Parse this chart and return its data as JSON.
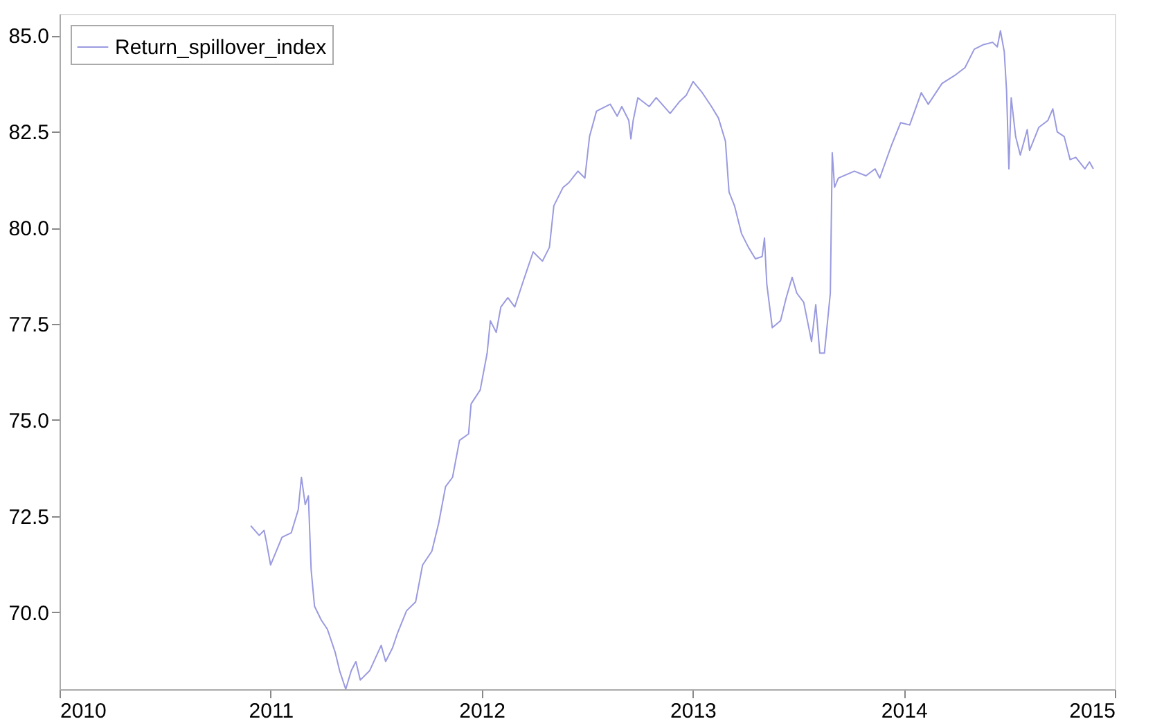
{
  "chart_data": {
    "type": "line",
    "xlim": [
      2010,
      2015
    ],
    "xticks": [
      2010,
      2011,
      2012,
      2013,
      2014,
      2015
    ],
    "ylim": [
      68.0,
      85.56
    ],
    "yticks": [
      {
        "value": 70,
        "label": "70.0"
      },
      72.5,
      {
        "value": 75,
        "label": "75.0"
      },
      77.5,
      {
        "value": 80,
        "label": "80.0"
      },
      82.5,
      {
        "value": 85,
        "label": "85.0"
      }
    ],
    "grid": false,
    "legend": "top left",
    "line_style": "solid",
    "series": [
      {
        "name": "Return_spillover_index",
        "color": "#9a9ae0",
        "x": [
          2010.906,
          2010.946,
          2010.969,
          2010.98,
          2011.0,
          2011.054,
          2011.098,
          2011.131,
          2011.146,
          2011.164,
          2011.179,
          2011.192,
          2011.208,
          2011.24,
          2011.269,
          2011.306,
          2011.327,
          2011.356,
          2011.382,
          2011.404,
          2011.425,
          2011.469,
          2011.524,
          2011.545,
          2011.578,
          2011.6,
          2011.644,
          2011.687,
          2011.72,
          2011.764,
          2011.796,
          2011.829,
          2011.862,
          2011.895,
          2011.938,
          2011.95,
          2011.993,
          2012.026,
          2012.041,
          2012.069,
          2012.091,
          2012.124,
          2012.157,
          2012.2,
          2012.244,
          2012.288,
          2012.321,
          2012.342,
          2012.386,
          2012.413,
          2012.456,
          2012.489,
          2012.511,
          2012.544,
          2012.609,
          2012.642,
          2012.664,
          2012.697,
          2012.707,
          2012.718,
          2012.74,
          2012.794,
          2012.827,
          2012.893,
          2012.936,
          2012.969,
          2013.002,
          2013.045,
          2013.089,
          2013.122,
          2013.155,
          2013.172,
          2013.198,
          2013.231,
          2013.264,
          2013.297,
          2013.329,
          2013.34,
          2013.351,
          2013.377,
          2013.416,
          2013.443,
          2013.471,
          2013.493,
          2013.526,
          2013.563,
          2013.583,
          2013.602,
          2013.624,
          2013.652,
          2013.661,
          2013.672,
          2013.69,
          2013.766,
          2013.821,
          2013.864,
          2013.886,
          2013.941,
          2013.985,
          2014.028,
          2014.083,
          2014.116,
          2014.181,
          2014.247,
          2014.29,
          2014.334,
          2014.378,
          2014.421,
          2014.443,
          2014.458,
          2014.476,
          2014.487,
          2014.498,
          2014.509,
          2014.53,
          2014.552,
          2014.585,
          2014.596,
          2014.64,
          2014.683,
          2014.706,
          2014.727,
          2014.76,
          2014.788,
          2014.815,
          2014.858,
          2014.88,
          2014.898
        ],
        "values": [
          72.25,
          72.0,
          72.13,
          71.83,
          71.23,
          71.95,
          72.07,
          72.67,
          73.51,
          72.8,
          73.03,
          71.11,
          70.16,
          69.8,
          69.56,
          68.96,
          68.48,
          68.0,
          68.48,
          68.72,
          68.24,
          68.48,
          69.14,
          68.72,
          69.08,
          69.44,
          70.04,
          70.27,
          71.23,
          71.59,
          72.31,
          73.27,
          73.51,
          74.47,
          74.64,
          75.42,
          75.78,
          76.74,
          77.58,
          77.28,
          77.94,
          78.18,
          77.94,
          78.66,
          79.37,
          79.13,
          79.49,
          80.57,
          81.05,
          81.17,
          81.47,
          81.29,
          82.37,
          83.03,
          83.21,
          82.9,
          83.15,
          82.79,
          82.31,
          82.79,
          83.38,
          83.15,
          83.38,
          82.97,
          83.27,
          83.44,
          83.8,
          83.51,
          83.15,
          82.85,
          82.25,
          80.93,
          80.57,
          79.85,
          79.49,
          79.19,
          79.25,
          79.73,
          78.53,
          77.4,
          77.58,
          78.18,
          78.71,
          78.3,
          78.06,
          77.04,
          78.0,
          76.74,
          76.74,
          78.3,
          81.95,
          81.05,
          81.29,
          81.47,
          81.35,
          81.53,
          81.29,
          82.13,
          82.73,
          82.67,
          83.51,
          83.21,
          83.75,
          83.98,
          84.16,
          84.64,
          84.76,
          84.82,
          84.7,
          85.12,
          84.58,
          83.56,
          81.53,
          83.38,
          82.37,
          81.89,
          82.55,
          82.01,
          82.61,
          82.79,
          83.09,
          82.49,
          82.37,
          81.77,
          81.83,
          81.53,
          81.71,
          81.53
        ]
      }
    ]
  }
}
